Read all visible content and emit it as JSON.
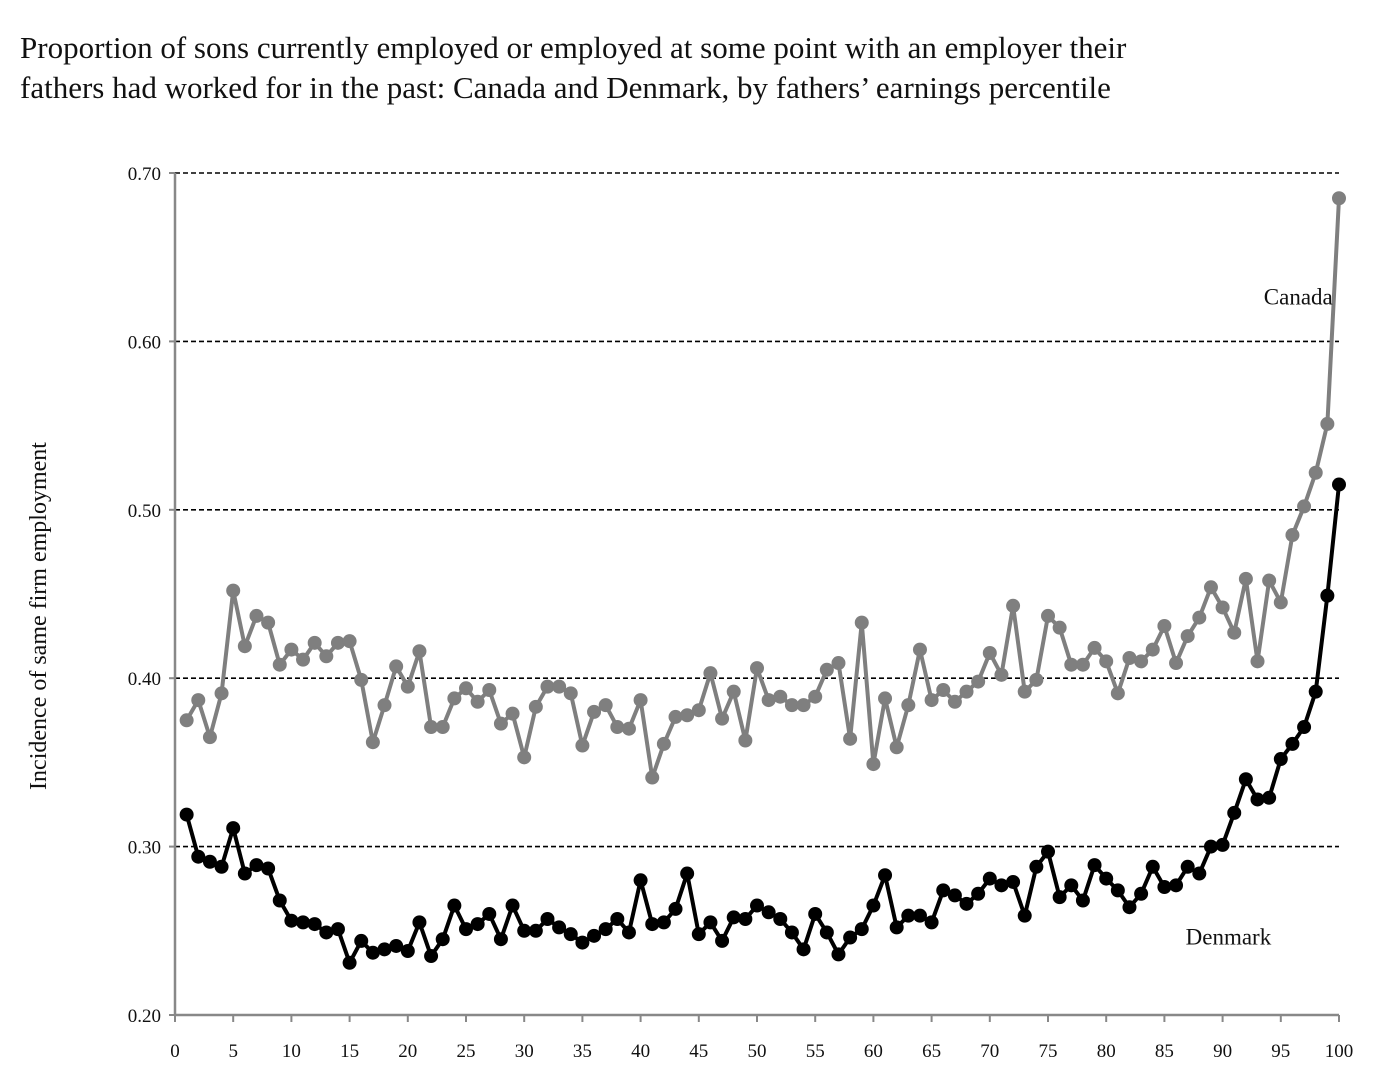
{
  "chart_data": {
    "type": "line",
    "title_lines": [
      "Proportion of sons currently employed or employed at some point with an employer their",
      "fathers had worked for in the past: Canada and Denmark, by fathers’ earnings percentile"
    ],
    "xlabel": "",
    "ylabel": "Incidence of same firm employment",
    "xlim": [
      0,
      100
    ],
    "ylim": [
      0.2,
      0.7
    ],
    "x_ticks": [
      0,
      5,
      10,
      15,
      20,
      25,
      30,
      35,
      40,
      45,
      50,
      55,
      60,
      65,
      70,
      75,
      80,
      85,
      90,
      95,
      100
    ],
    "y_ticks": [
      "0.20",
      "0.30",
      "0.40",
      "0.50",
      "0.60",
      "0.70"
    ],
    "grid": "horizontal dashed",
    "legend": "inline labels",
    "x": [
      1,
      2,
      3,
      4,
      5,
      6,
      7,
      8,
      9,
      10,
      11,
      12,
      13,
      14,
      15,
      16,
      17,
      18,
      19,
      20,
      21,
      22,
      23,
      24,
      25,
      26,
      27,
      28,
      29,
      30,
      31,
      32,
      33,
      34,
      35,
      36,
      37,
      38,
      39,
      40,
      41,
      42,
      43,
      44,
      45,
      46,
      47,
      48,
      49,
      50,
      51,
      52,
      53,
      54,
      55,
      56,
      57,
      58,
      59,
      60,
      61,
      62,
      63,
      64,
      65,
      66,
      67,
      68,
      69,
      70,
      71,
      72,
      73,
      74,
      75,
      76,
      77,
      78,
      79,
      80,
      81,
      82,
      83,
      84,
      85,
      86,
      87,
      88,
      89,
      90,
      91,
      92,
      93,
      94,
      95,
      96,
      97,
      98,
      99,
      100
    ],
    "series": [
      {
        "name": "Canada",
        "color": "#7f7f7f",
        "values": [
          0.375,
          0.387,
          0.365,
          0.391,
          0.452,
          0.419,
          0.437,
          0.433,
          0.408,
          0.417,
          0.411,
          0.421,
          0.413,
          0.421,
          0.422,
          0.399,
          0.362,
          0.384,
          0.407,
          0.395,
          0.416,
          0.371,
          0.371,
          0.388,
          0.394,
          0.386,
          0.393,
          0.373,
          0.379,
          0.353,
          0.383,
          0.395,
          0.395,
          0.391,
          0.36,
          0.38,
          0.384,
          0.371,
          0.37,
          0.387,
          0.341,
          0.361,
          0.377,
          0.378,
          0.381,
          0.403,
          0.376,
          0.392,
          0.363,
          0.406,
          0.387,
          0.389,
          0.384,
          0.384,
          0.389,
          0.405,
          0.409,
          0.364,
          0.433,
          0.349,
          0.388,
          0.359,
          0.384,
          0.417,
          0.387,
          0.393,
          0.386,
          0.392,
          0.398,
          0.415,
          0.402,
          0.443,
          0.392,
          0.399,
          0.437,
          0.43,
          0.408,
          0.408,
          0.418,
          0.41,
          0.391,
          0.412,
          0.41,
          0.417,
          0.431,
          0.409,
          0.425,
          0.436,
          0.454,
          0.442,
          0.427,
          0.459,
          0.41,
          0.458,
          0.445,
          0.485,
          0.502,
          0.522,
          0.551,
          0.685
        ]
      },
      {
        "name": "Denmark",
        "color": "#000000",
        "values": [
          0.319,
          0.294,
          0.291,
          0.288,
          0.311,
          0.284,
          0.289,
          0.287,
          0.268,
          0.256,
          0.255,
          0.254,
          0.249,
          0.251,
          0.231,
          0.244,
          0.237,
          0.239,
          0.241,
          0.238,
          0.255,
          0.235,
          0.245,
          0.265,
          0.251,
          0.254,
          0.26,
          0.245,
          0.265,
          0.25,
          0.25,
          0.257,
          0.252,
          0.248,
          0.243,
          0.247,
          0.251,
          0.257,
          0.249,
          0.28,
          0.254,
          0.255,
          0.263,
          0.284,
          0.248,
          0.255,
          0.244,
          0.258,
          0.257,
          0.265,
          0.261,
          0.257,
          0.249,
          0.239,
          0.26,
          0.249,
          0.236,
          0.246,
          0.251,
          0.265,
          0.283,
          0.252,
          0.259,
          0.259,
          0.255,
          0.274,
          0.271,
          0.266,
          0.272,
          0.281,
          0.277,
          0.279,
          0.259,
          0.288,
          0.297,
          0.27,
          0.277,
          0.268,
          0.289,
          0.281,
          0.274,
          0.264,
          0.272,
          0.288,
          0.276,
          0.277,
          0.288,
          0.284,
          0.3,
          0.301,
          0.32,
          0.34,
          0.328,
          0.329,
          0.352,
          0.361,
          0.371,
          0.392,
          0.449,
          0.515
        ]
      }
    ],
    "annotations": [
      {
        "text": "Canada",
        "x": 96.5,
        "y": 0.622
      },
      {
        "text": "Denmark",
        "x": 90.5,
        "y": 0.242
      }
    ]
  }
}
